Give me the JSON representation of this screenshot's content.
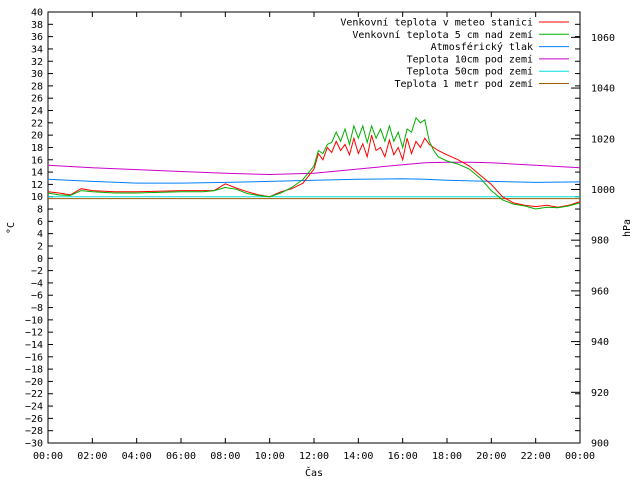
{
  "chart_data": {
    "type": "line",
    "xlabel": "Čas",
    "ylabel": "°C",
    "y2label": "hPa",
    "x_ticks": [
      "00:00",
      "02:00",
      "04:00",
      "06:00",
      "08:00",
      "10:00",
      "12:00",
      "14:00",
      "16:00",
      "18:00",
      "20:00",
      "22:00",
      "00:00"
    ],
    "x_range_hours": [
      0,
      24
    ],
    "ylim": [
      -30,
      40
    ],
    "y_tick_step": 2,
    "y2lim": [
      900,
      1070
    ],
    "y2_ticks": [
      900,
      920,
      940,
      960,
      980,
      1000,
      1020,
      1040,
      1060
    ],
    "grid": false,
    "legend_position": "top-right",
    "series": [
      {
        "name": "Venkovní teplota v meteo stanici",
        "color": "#ff0000",
        "axis": "left",
        "x": [
          0,
          0.5,
          1,
          1.5,
          2,
          3,
          4,
          5,
          6,
          7,
          7.5,
          8,
          8.5,
          9,
          9.5,
          10,
          10.5,
          11,
          11.5,
          12,
          12.2,
          12.4,
          12.6,
          12.8,
          13,
          13.2,
          13.4,
          13.6,
          13.8,
          14,
          14.2,
          14.4,
          14.6,
          14.8,
          15,
          15.2,
          15.4,
          15.6,
          15.8,
          16,
          16.2,
          16.4,
          16.6,
          16.8,
          17,
          17.2,
          17.4,
          17.6,
          18,
          18.5,
          19,
          19.5,
          20,
          20.5,
          21,
          21.5,
          22,
          22.5,
          23,
          23.5,
          24
        ],
        "values": [
          10.8,
          10.6,
          10.3,
          11.3,
          11.0,
          10.8,
          10.8,
          10.9,
          11.0,
          11.0,
          11.0,
          12.1,
          11.4,
          10.8,
          10.3,
          10.0,
          10.8,
          11.3,
          12.2,
          14.5,
          17.0,
          16.0,
          18.0,
          17.2,
          19.0,
          17.5,
          18.5,
          16.8,
          19.5,
          17.0,
          18.6,
          16.5,
          20.0,
          17.5,
          18.0,
          16.5,
          19.2,
          16.8,
          18.0,
          16.0,
          19.5,
          17.0,
          19.0,
          18.0,
          19.5,
          18.5,
          18.0,
          17.5,
          16.8,
          16.0,
          15.0,
          13.5,
          12.0,
          10.0,
          9.0,
          8.6,
          8.4,
          8.6,
          8.3,
          8.6,
          9.2
        ]
      },
      {
        "name": "Venkovní teplota 5 cm nad zemí",
        "color": "#00b000",
        "axis": "left",
        "x": [
          0,
          0.5,
          1,
          1.5,
          2,
          3,
          4,
          5,
          6,
          7,
          7.5,
          8,
          8.5,
          9,
          9.5,
          10,
          10.5,
          11,
          11.5,
          12,
          12.2,
          12.4,
          12.6,
          12.8,
          13,
          13.2,
          13.4,
          13.6,
          13.8,
          14,
          14.2,
          14.4,
          14.6,
          14.8,
          15,
          15.2,
          15.4,
          15.6,
          15.8,
          16,
          16.2,
          16.4,
          16.6,
          16.8,
          17,
          17.2,
          17.4,
          17.6,
          18,
          18.5,
          19,
          19.5,
          20,
          20.5,
          21,
          21.5,
          22,
          22.5,
          23,
          23.5,
          24
        ],
        "values": [
          10.6,
          10.3,
          10.2,
          11.0,
          10.8,
          10.6,
          10.6,
          10.7,
          10.8,
          10.8,
          11.0,
          11.5,
          11.2,
          10.5,
          10.2,
          10.0,
          10.6,
          11.5,
          12.8,
          15.0,
          17.5,
          17.0,
          18.5,
          18.8,
          20.5,
          19.0,
          21.0,
          18.5,
          21.5,
          19.5,
          21.5,
          18.8,
          21.5,
          19.5,
          21.0,
          19.0,
          21.5,
          19.0,
          20.5,
          18.0,
          21.0,
          20.5,
          22.8,
          22.0,
          22.5,
          19.0,
          17.5,
          16.5,
          15.8,
          15.3,
          14.5,
          13.0,
          11.0,
          9.5,
          8.8,
          8.5,
          8.0,
          8.3,
          8.2,
          8.5,
          9.0
        ]
      },
      {
        "name": "Atmosférický tlak",
        "color": "#0080ff",
        "axis": "right",
        "x": [
          0,
          2,
          4,
          6,
          8,
          10,
          12,
          14,
          16,
          17,
          18,
          20,
          22,
          24
        ],
        "values": [
          1004.0,
          1003.2,
          1002.5,
          1002.5,
          1002.8,
          1003.2,
          1003.6,
          1004.0,
          1004.2,
          1004.0,
          1003.6,
          1003.2,
          1002.8,
          1003.0
        ]
      },
      {
        "name": "Teplota 10cm pod zemí",
        "color": "#cc00cc",
        "axis": "left",
        "x": [
          0,
          2,
          4,
          6,
          8,
          10,
          12,
          14,
          16,
          17,
          18,
          19,
          20,
          22,
          24
        ],
        "values": [
          15.1,
          14.7,
          14.4,
          14.1,
          13.8,
          13.6,
          13.8,
          14.5,
          15.2,
          15.5,
          15.6,
          15.6,
          15.5,
          15.1,
          14.7
        ]
      },
      {
        "name": "Teplota 50cm pod zemí",
        "color": "#00e0e0",
        "axis": "left",
        "x": [
          0,
          6,
          12,
          18,
          24
        ],
        "values": [
          10.0,
          10.0,
          10.0,
          10.0,
          10.0
        ]
      },
      {
        "name": "Teplota 1 metr pod zemí",
        "color": "#a05a00",
        "axis": "left",
        "x": [
          0,
          6,
          12,
          18,
          24
        ],
        "values": [
          9.7,
          9.7,
          9.7,
          9.7,
          9.7
        ]
      }
    ]
  }
}
